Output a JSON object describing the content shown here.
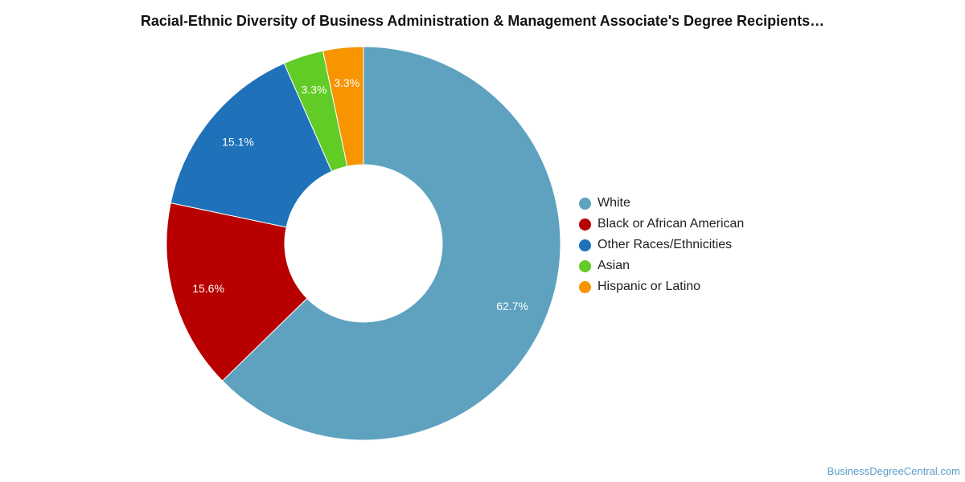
{
  "chart_data": {
    "type": "pie",
    "title": "Racial-Ethnic Diversity of Business Administration & Management Associate's Degree Recipients…",
    "donut": true,
    "legend_position": "right",
    "slices": [
      {
        "label": "White",
        "value": 62.7,
        "display": "62.7%",
        "color": "#5ea2bf"
      },
      {
        "label": "Black or African American",
        "value": 15.6,
        "display": "15.6%",
        "color": "#b80000"
      },
      {
        "label": "Other Races/Ethnicities",
        "value": 15.1,
        "display": "15.1%",
        "color": "#1f72ba"
      },
      {
        "label": "Asian",
        "value": 3.3,
        "display": "3.3%",
        "color": "#62cc26"
      },
      {
        "label": "Hispanic or Latino",
        "value": 3.3,
        "display": "3.3%",
        "color": "#f79400"
      }
    ]
  },
  "watermark": "BusinessDegreeCentral.com"
}
